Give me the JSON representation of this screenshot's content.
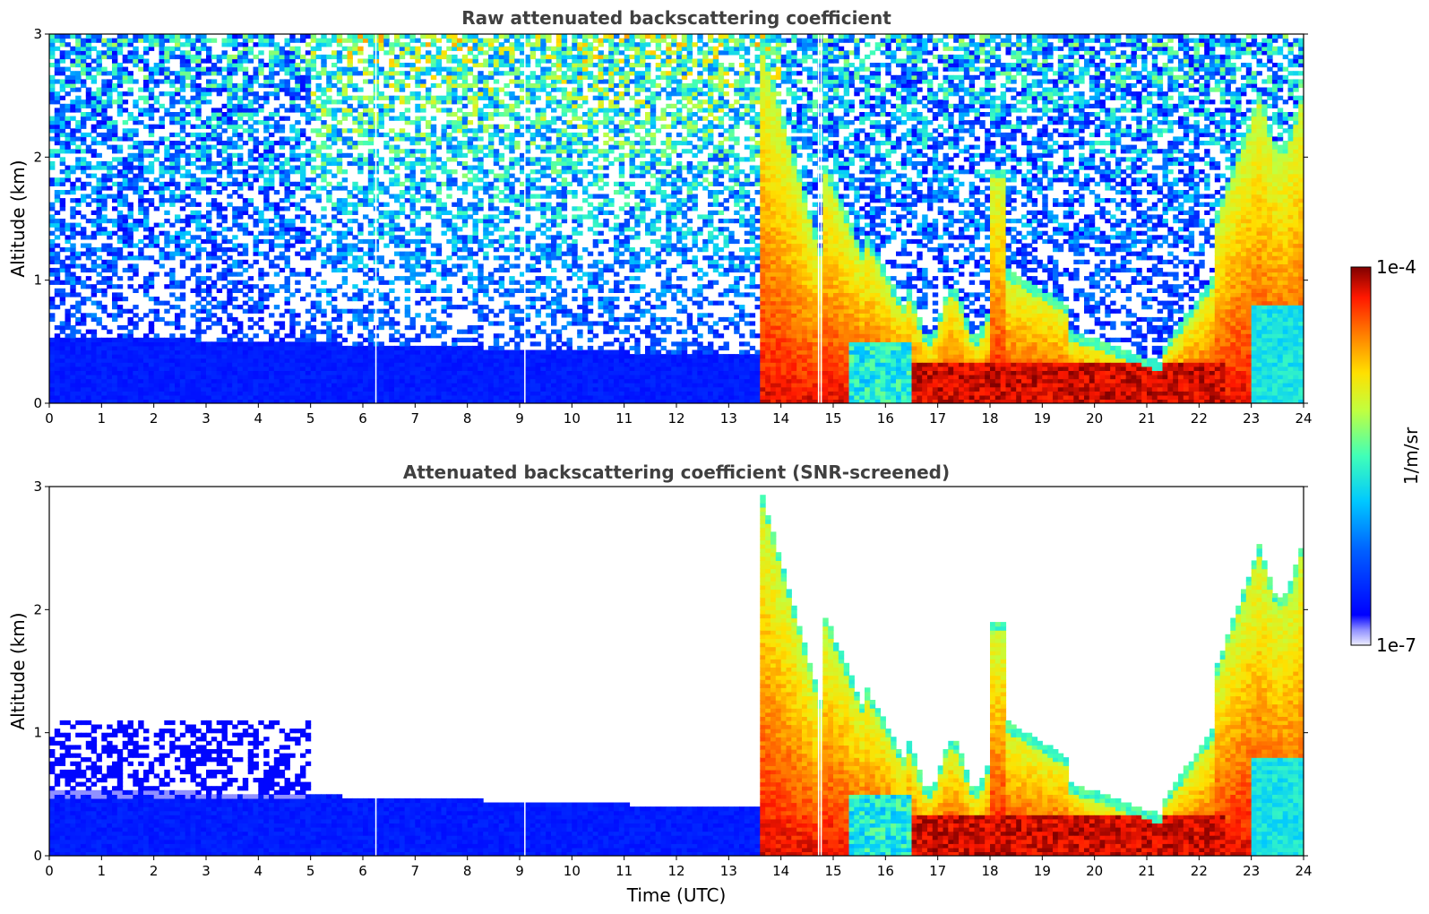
{
  "chart_data": [
    {
      "type": "heatmap",
      "title": "Raw attenuated backscattering coefficient",
      "xlabel": "",
      "ylabel": "Altitude (km)",
      "xlim": [
        0,
        24
      ],
      "ylim": [
        0,
        3
      ],
      "x_ticks": [
        0,
        1,
        2,
        3,
        4,
        5,
        6,
        7,
        8,
        9,
        10,
        11,
        12,
        13,
        14,
        15,
        16,
        17,
        18,
        19,
        20,
        21,
        22,
        23,
        24
      ],
      "y_ticks": [
        0,
        1,
        2,
        3
      ],
      "screened": false,
      "data_gaps_hours": [
        6.25,
        9.1,
        14.72,
        14.77
      ]
    },
    {
      "type": "heatmap",
      "title": "Attenuated backscattering coefficient (SNR-screened)",
      "xlabel": "Time (UTC)",
      "ylabel": "Altitude (km)",
      "xlim": [
        0,
        24
      ],
      "ylim": [
        0,
        3
      ],
      "x_ticks": [
        0,
        1,
        2,
        3,
        4,
        5,
        6,
        7,
        8,
        9,
        10,
        11,
        12,
        13,
        14,
        15,
        16,
        17,
        18,
        19,
        20,
        21,
        22,
        23,
        24
      ],
      "y_ticks": [
        0,
        1,
        2,
        3
      ],
      "screened": true,
      "data_gaps_hours": [
        6.25,
        9.1,
        14.72,
        14.77
      ]
    }
  ],
  "colorbar": {
    "label": "1/m/sr",
    "min_label": "1e-7",
    "max_label": "1e-4",
    "colormap": "jet"
  }
}
